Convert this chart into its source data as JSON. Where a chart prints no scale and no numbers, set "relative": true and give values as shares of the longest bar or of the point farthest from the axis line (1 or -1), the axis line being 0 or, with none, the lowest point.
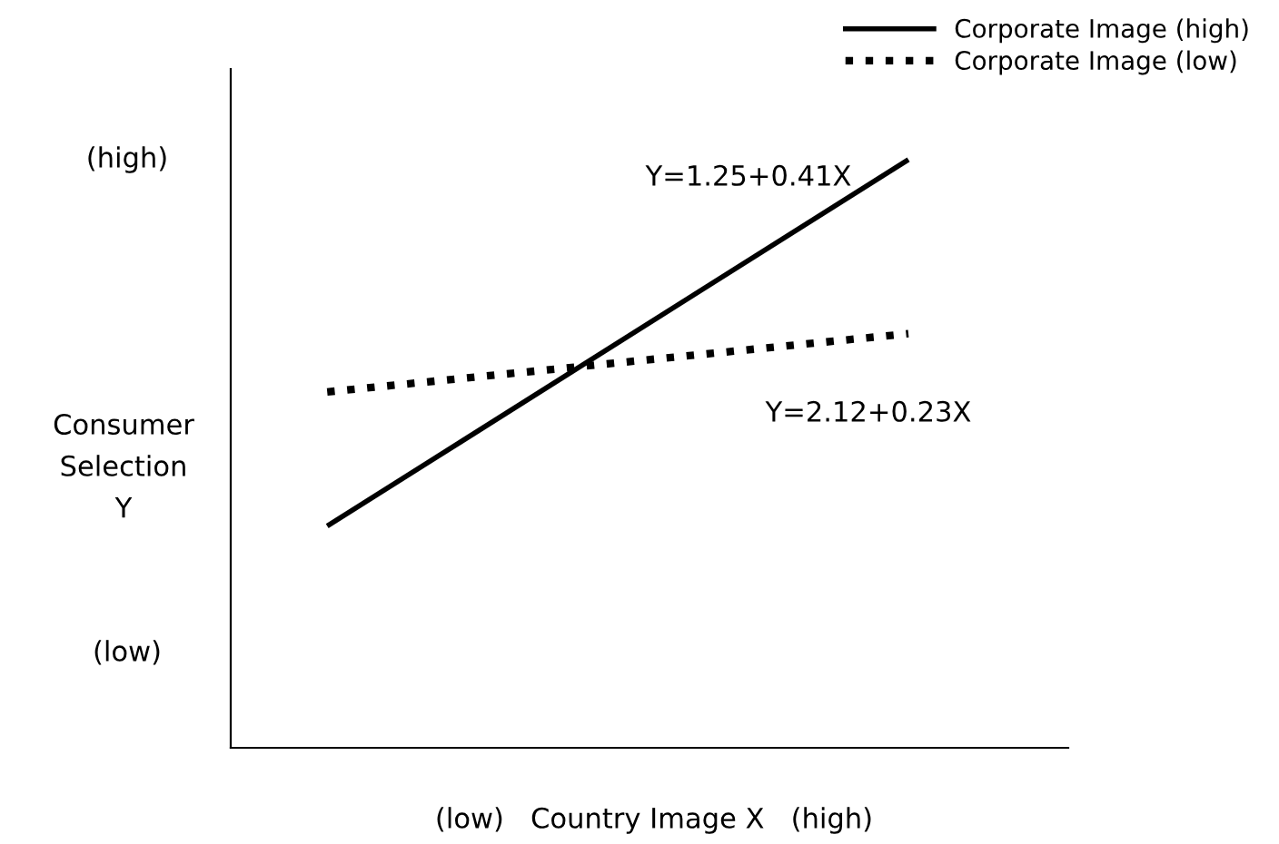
{
  "chart_data": {
    "type": "line",
    "relative": true,
    "categories": [
      null,
      null
    ],
    "xlabel": "(low)   Country Image X   (high)",
    "ylabel": "Consumer\nSelection\nY",
    "series": [
      {
        "name": "Corporate Image (high)",
        "color": "#000000",
        "line_style": "solid",
        "values": [
          0.377,
          1
        ]
      },
      {
        "name": "Corporate Image (low)",
        "color": "#000000",
        "line_style": "dotted",
        "values": [
          0.605,
          0.704
        ]
      }
    ],
    "annotations": [
      "(high)",
      "(low)",
      "Y=1.25+0.41X",
      "Y=2.12+0.23X"
    ],
    "legend": "top right",
    "tick_labels": false
  }
}
